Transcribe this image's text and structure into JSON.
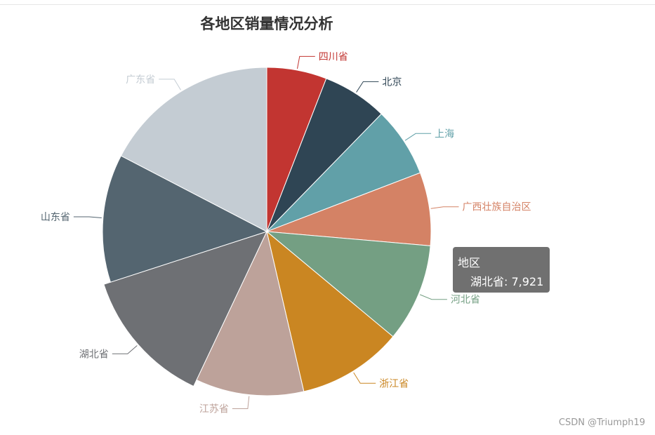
{
  "chart_data": {
    "type": "pie",
    "title": "各地区销量情况分析",
    "series": [
      {
        "name": "地区",
        "data": [
          {
            "name": "四川省",
            "value": 3600,
            "color": "#c23531"
          },
          {
            "name": "北京",
            "value": 3900,
            "color": "#2f4554"
          },
          {
            "name": "上海",
            "value": 4200,
            "color": "#61a0a8"
          },
          {
            "name": "广西壮族自治区",
            "value": 4400,
            "color": "#d48265"
          },
          {
            "name": "河北省",
            "value": 5900,
            "color": "#749f83"
          },
          {
            "name": "浙江省",
            "value": 6300,
            "color": "#ca8622"
          },
          {
            "name": "江苏省",
            "value": 6500,
            "color": "#bda29a"
          },
          {
            "name": "湖北省",
            "value": 7921,
            "color": "#6e7074"
          },
          {
            "name": "山东省",
            "value": 7700,
            "color": "#546570"
          },
          {
            "name": "广东省",
            "value": 10600,
            "color": "#c4ccd3"
          }
        ]
      }
    ],
    "highlighted": "湖北省"
  },
  "tooltip": {
    "title": "地区",
    "row": "湖北省: 7,921"
  },
  "watermark": "CSDN @Triumph19"
}
